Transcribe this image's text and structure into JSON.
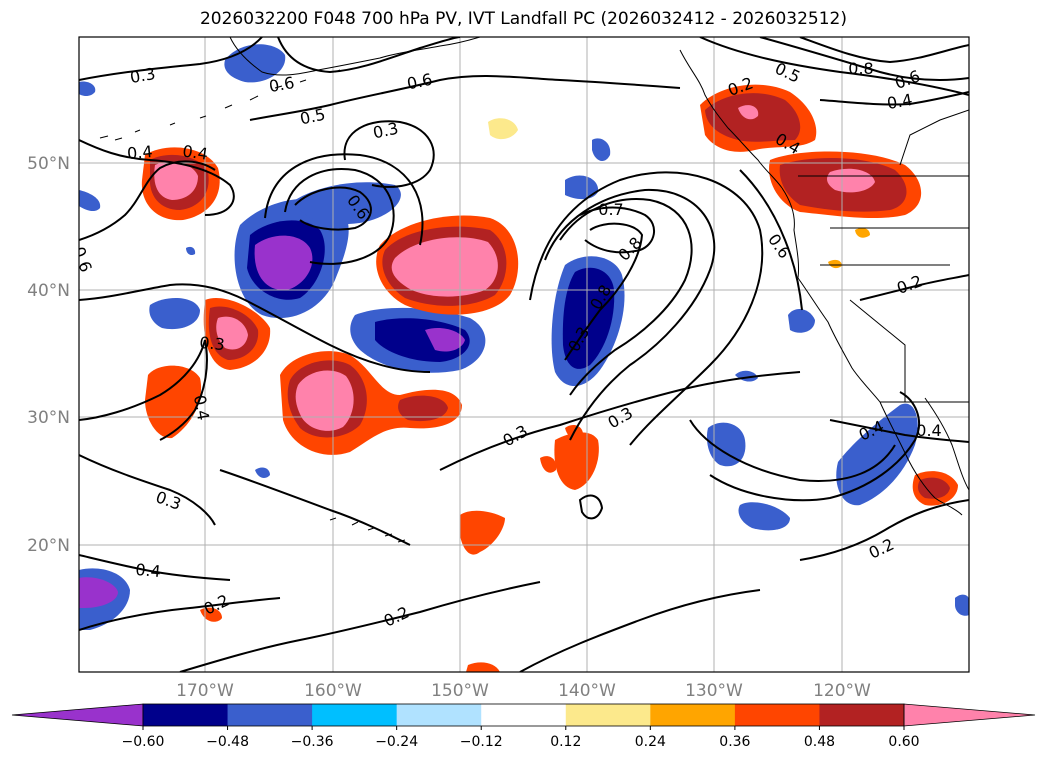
{
  "title": "2026032200 F048 700 hPa PV, IVT Landfall PC (2026032412 - 2026032512)",
  "latitude_labels": [
    "50°N",
    "40°N",
    "30°N",
    "20°N"
  ],
  "longitude_labels": [
    "170°W",
    "160°W",
    "150°W",
    "140°W",
    "130°W",
    "120°W"
  ],
  "contour_labels": [
    "0.3",
    "0.6",
    "0.6",
    "0.5",
    "0.4",
    "0.4",
    "0.3",
    "0.6",
    "0.7",
    "0.8",
    "0.8",
    "0.6",
    "0.5",
    "0.6",
    "0.8",
    "0.4",
    "0.2",
    "0.4",
    "0.6",
    "0.3",
    "0.3",
    "0.4",
    "0.3",
    "0.3",
    "0.3",
    "0.4",
    "0.2",
    "0.2",
    "0.2",
    "0.2",
    "0.4",
    "0.4"
  ],
  "colorbar": {
    "tick_labels": [
      "−0.60",
      "−0.48",
      "−0.36",
      "−0.24",
      "−0.12",
      "0.12",
      "0.24",
      "0.36",
      "0.48",
      "0.60"
    ],
    "colors": [
      "#9932cc",
      "#00008b",
      "#3a5fcd",
      "#00bfff",
      "#b0e2ff",
      "#ffffff",
      "#fce98c",
      "#ffa500",
      "#ff4500",
      "#b22222",
      "#ff82ab"
    ]
  }
}
